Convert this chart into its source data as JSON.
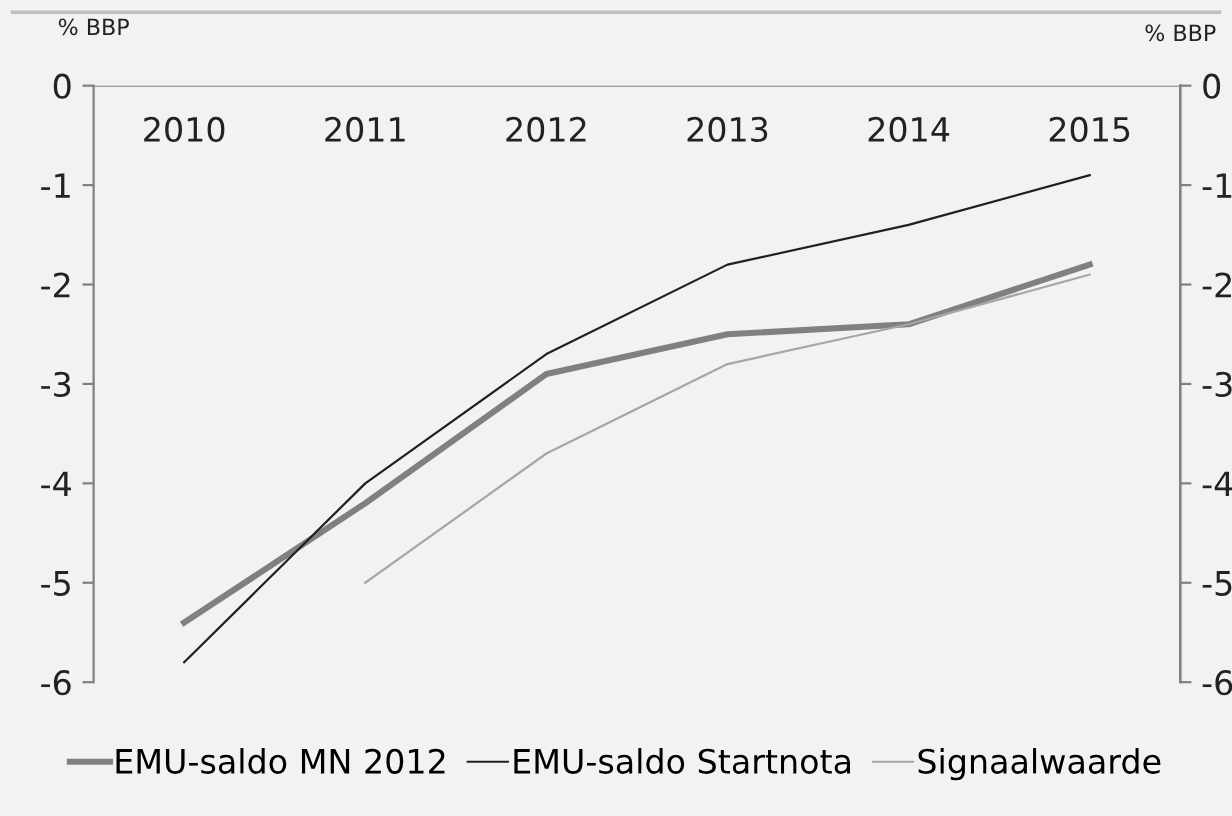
{
  "chart_data": {
    "type": "line",
    "categories": [
      "2010",
      "2011",
      "2012",
      "2013",
      "2014",
      "2015"
    ],
    "ylabel": "% BBP",
    "y2label": "% BBP",
    "ylim": [
      -6,
      0
    ],
    "yticks": [
      -6,
      -5,
      -4,
      -3,
      -2,
      -1,
      0
    ],
    "y2lim": [
      -6,
      0
    ],
    "y2ticks": [
      -6,
      -5,
      -4,
      -3,
      -2,
      -1,
      0
    ],
    "grid": false,
    "legend": "bottom",
    "marker": "none",
    "line_style": "solid",
    "series": [
      {
        "name": "EMU-saldo MN 2012",
        "color": "#808080",
        "values": [
          -5.4,
          -4.2,
          -2.9,
          -2.5,
          -2.4,
          -1.8
        ]
      },
      {
        "name": "EMU-saldo Startnota",
        "color": "#202020",
        "values": [
          -5.8,
          -4.0,
          -2.7,
          -1.8,
          -1.4,
          -0.9
        ]
      },
      {
        "name": "Signaalwaarde",
        "color": "#a6a6a6",
        "values": [
          null,
          -5.0,
          -3.7,
          -2.8,
          -2.4,
          -1.9
        ]
      }
    ]
  }
}
